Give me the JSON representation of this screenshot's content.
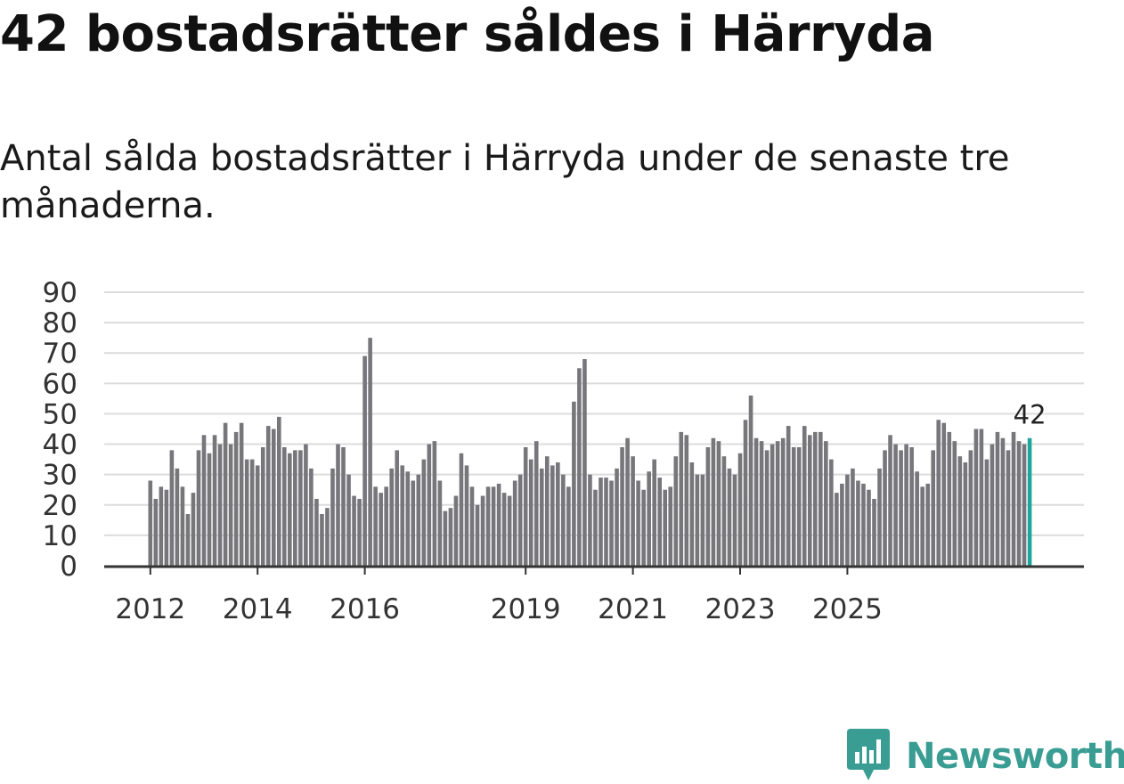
{
  "header": {
    "title": "42 bostadsrätter såldes i Härryda",
    "subtitle": "Antal sålda bostadsrätter i Härryda under de senaste tre månaderna."
  },
  "brand": {
    "name": "Newsworthy",
    "icon": "newsworthy-logo-icon"
  },
  "colors": {
    "bar": "#77767b",
    "highlight": "#1fa59b",
    "grid": "#dcdcdc",
    "axis": "#333333",
    "brand": "#3a9d94"
  },
  "chart_data": {
    "type": "bar",
    "title": "42 bostadsrätter såldes i Härryda",
    "subtitle": "Antal sålda bostadsrätter i Härryda under de senaste tre månaderna.",
    "xlabel": "",
    "ylabel": "",
    "ylim": [
      0,
      90
    ],
    "yticks": [
      0,
      10,
      20,
      30,
      40,
      50,
      60,
      70,
      80,
      90
    ],
    "xticks": [
      {
        "label": "2012",
        "index": 0
      },
      {
        "label": "2014",
        "index": 20
      },
      {
        "label": "2016",
        "index": 40
      },
      {
        "label": "2019",
        "index": 70
      },
      {
        "label": "2021",
        "index": 90
      },
      {
        "label": "2023",
        "index": 110
      },
      {
        "label": "2025",
        "index": 130
      }
    ],
    "grid": true,
    "highlight_last": true,
    "last_value_label": "42",
    "values": [
      28,
      22,
      26,
      25,
      38,
      32,
      26,
      17,
      24,
      38,
      43,
      37,
      43,
      40,
      47,
      40,
      44,
      47,
      35,
      35,
      33,
      39,
      46,
      45,
      49,
      39,
      37,
      38,
      38,
      40,
      32,
      22,
      17,
      19,
      32,
      40,
      39,
      30,
      23,
      22,
      69,
      75,
      26,
      24,
      26,
      32,
      38,
      33,
      31,
      28,
      30,
      35,
      40,
      41,
      28,
      18,
      19,
      23,
      37,
      33,
      26,
      20,
      23,
      26,
      26,
      27,
      24,
      23,
      28,
      30,
      39,
      35,
      41,
      32,
      36,
      33,
      34,
      30,
      26,
      54,
      65,
      68,
      30,
      25,
      29,
      29,
      28,
      32,
      39,
      42,
      36,
      28,
      25,
      31,
      35,
      29,
      25,
      26,
      36,
      44,
      43,
      34,
      30,
      30,
      39,
      42,
      41,
      36,
      32,
      30,
      37,
      48,
      56,
      42,
      41,
      38,
      40,
      41,
      42,
      46,
      39,
      39,
      46,
      43,
      44,
      44,
      41,
      35,
      24,
      27,
      30,
      32,
      28,
      27,
      25,
      22,
      32,
      38,
      43,
      40,
      38,
      40,
      39,
      31,
      26,
      27,
      38,
      48,
      47,
      44,
      41,
      36,
      34,
      38,
      45,
      45,
      35,
      40,
      44,
      42,
      38,
      44,
      41,
      40,
      42
    ]
  }
}
